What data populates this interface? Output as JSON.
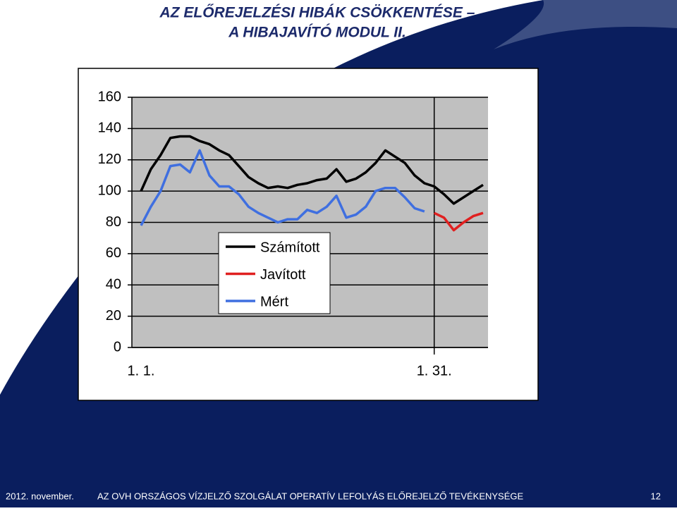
{
  "chart_data": {
    "type": "line",
    "title": [
      "AZ ELŐREJELZÉSI HIBÁK CSÖKKENTÉSE –",
      "A HIBAJAVÍTÓ MODUL II."
    ],
    "categories": [
      "1. 1.",
      null,
      null,
      null,
      null,
      null,
      null,
      null,
      null,
      null,
      null,
      null,
      null,
      null,
      null,
      null,
      null,
      null,
      null,
      null,
      null,
      null,
      null,
      null,
      null,
      null,
      null,
      null,
      null,
      null,
      "1. 31.",
      null,
      null,
      null,
      null,
      null
    ],
    "series": [
      {
        "name": "Számított",
        "color": "#000000",
        "values": [
          100,
          114,
          123,
          134,
          135,
          135,
          132,
          130,
          126,
          123,
          116,
          109,
          105,
          102,
          103,
          102,
          104,
          105,
          107,
          108,
          114,
          106,
          108,
          112,
          118,
          126,
          122,
          118,
          110,
          105,
          103,
          98,
          92,
          96,
          100,
          104
        ]
      },
      {
        "name": "Javított",
        "color": "#e02020",
        "values": [
          null,
          null,
          null,
          null,
          null,
          null,
          null,
          null,
          null,
          null,
          null,
          null,
          null,
          null,
          null,
          null,
          null,
          null,
          null,
          null,
          null,
          null,
          null,
          null,
          null,
          null,
          null,
          null,
          null,
          null,
          86,
          83,
          75,
          80,
          84,
          86
        ]
      },
      {
        "name": "Mért",
        "color": "#3f6fe0",
        "values": [
          78,
          90,
          100,
          116,
          117,
          112,
          126,
          110,
          103,
          103,
          98,
          90,
          86,
          83,
          80,
          82,
          82,
          88,
          86,
          90,
          97,
          83,
          85,
          90,
          100,
          102,
          102,
          96,
          89,
          87,
          null,
          null,
          null,
          null,
          null,
          null
        ]
      }
    ],
    "ylim": [
      0,
      160
    ],
    "yticks": [
      0,
      20,
      40,
      60,
      80,
      100,
      120,
      140,
      160
    ],
    "grid": true,
    "legend": "center"
  },
  "footer": {
    "date": "2012. november.",
    "text": "AZ OVH ORSZÁGOS VÍZJELZŐ SZOLGÁLAT  OPERATÍV LEFOLYÁS ELŐREJELZŐ TEVÉKENYSÉGE",
    "page": "12"
  }
}
